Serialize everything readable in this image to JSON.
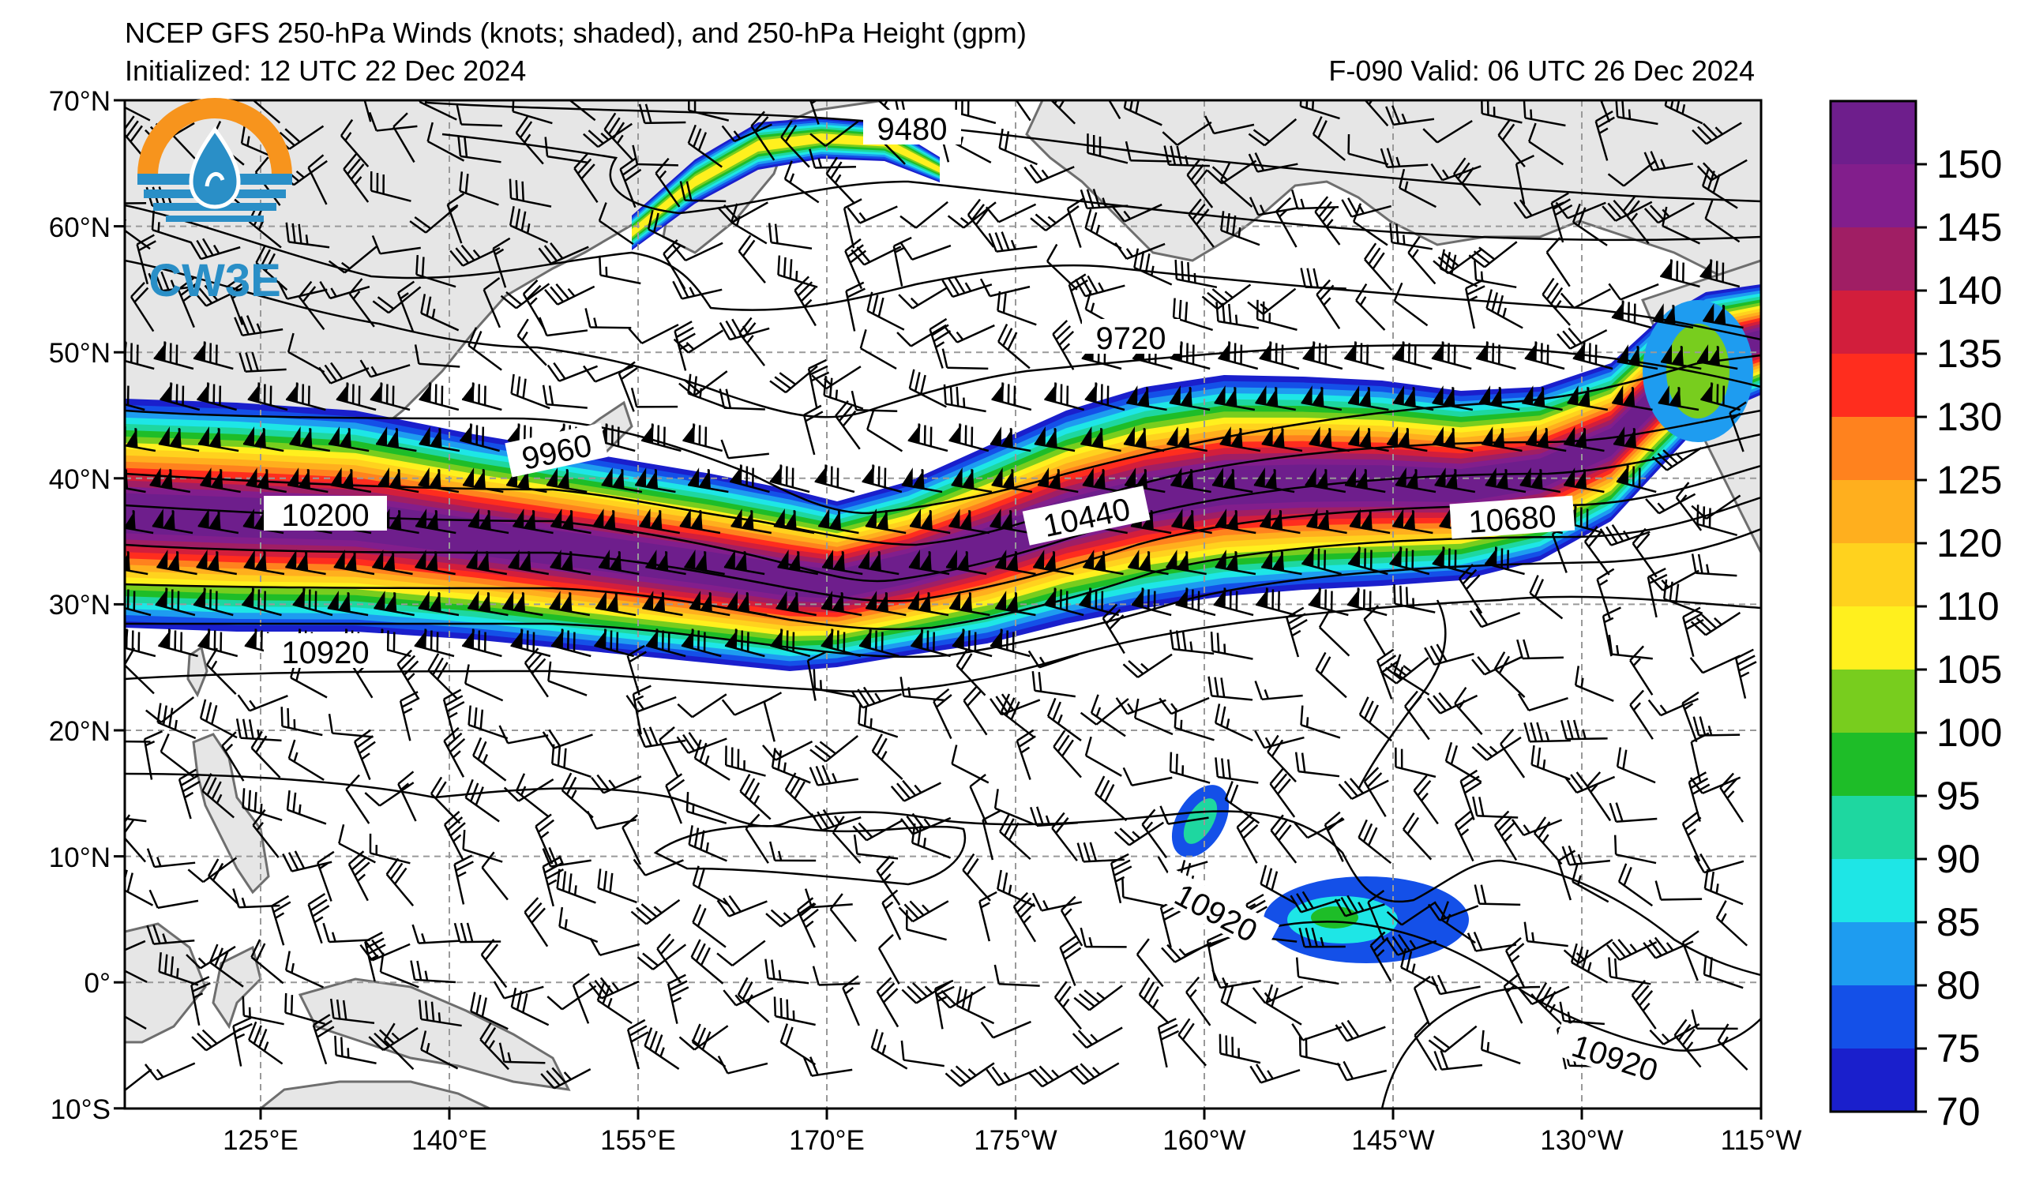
{
  "header": {
    "title": "NCEP GFS 250-hPa Winds (knots; shaded), and 250-hPa Height (gpm)",
    "initialized": "Initialized: 12 UTC 22 Dec 2024",
    "forecast": "F-090  Valid: 06 UTC 26 Dec 2024"
  },
  "logo": {
    "text": "CW3E",
    "icon": "cw3e-water-drop-logo-icon"
  },
  "axes": {
    "lat_labels": [
      "70°N",
      "60°N",
      "50°N",
      "40°N",
      "30°N",
      "20°N",
      "10°N",
      "0°",
      "10°S"
    ],
    "lon_labels": [
      "125°E",
      "140°E",
      "155°E",
      "170°E",
      "175°W",
      "160°W",
      "145°W",
      "130°W",
      "115°W"
    ]
  },
  "contour_labels": [
    "9480",
    "9720",
    "9960",
    "10200",
    "10440",
    "10680",
    "10920",
    "10920",
    "10920"
  ],
  "colorbar": {
    "labels": [
      "70",
      "75",
      "80",
      "85",
      "90",
      "95",
      "100",
      "105",
      "110",
      "120",
      "125",
      "130",
      "135",
      "140",
      "145",
      "150"
    ],
    "colors": [
      "#1a1fcc",
      "#1450e8",
      "#1e9cf0",
      "#1ee6e6",
      "#1ed7a0",
      "#1ebd28",
      "#78cd1e",
      "#fff01e",
      "#ffd21e",
      "#ffaf1e",
      "#ff821e",
      "#ff2d1e",
      "#d21e3c",
      "#a01e64",
      "#821e8c",
      "#6e1e8c"
    ]
  },
  "colors": {
    "land": "#e6e6e6",
    "coast": "#6e6e6e",
    "grid": "#999999",
    "logo_orange": "#f7941d",
    "logo_blue": "#2a8fc7"
  }
}
